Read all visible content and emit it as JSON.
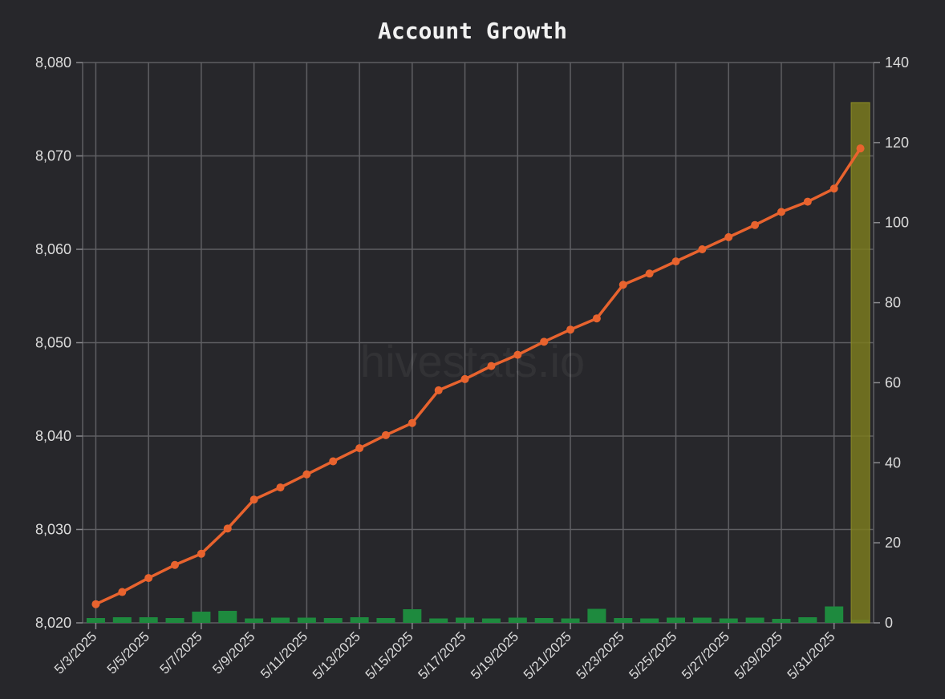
{
  "chart_data": {
    "type": "line",
    "title": "Account Growth",
    "watermark": "hivestats.io",
    "x": [
      "5/3/2025",
      "5/4/2025",
      "5/5/2025",
      "5/6/2025",
      "5/7/2025",
      "5/8/2025",
      "5/9/2025",
      "5/10/2025",
      "5/11/2025",
      "5/12/2025",
      "5/13/2025",
      "5/14/2025",
      "5/15/2025",
      "5/16/2025",
      "5/17/2025",
      "5/18/2025",
      "5/19/2025",
      "5/20/2025",
      "5/21/2025",
      "5/22/2025",
      "5/23/2025",
      "5/24/2025",
      "5/25/2025",
      "5/26/2025",
      "5/27/2025",
      "5/28/2025",
      "5/29/2025",
      "5/30/2025",
      "5/31/2025",
      "6/1/2025"
    ],
    "x_tick_labels": [
      "5/3/2025",
      "5/5/2025",
      "5/7/2025",
      "5/9/2025",
      "5/11/2025",
      "5/13/2025",
      "5/15/2025",
      "5/17/2025",
      "5/19/2025",
      "5/21/2025",
      "5/23/2025",
      "5/25/2025",
      "5/27/2025",
      "5/29/2025",
      "5/31/2025"
    ],
    "y_left": {
      "ylim": [
        8020,
        8080
      ],
      "ticks": [
        8020,
        8030,
        8040,
        8050,
        8060,
        8070,
        8080
      ],
      "tick_labels": [
        "8,020",
        "8,030",
        "8,040",
        "8,050",
        "8,060",
        "8,070",
        "8,080"
      ]
    },
    "y_right": {
      "ylim": [
        0,
        140
      ],
      "ticks": [
        0,
        20,
        40,
        60,
        80,
        100,
        120,
        140
      ],
      "tick_labels": [
        "0",
        "20",
        "40",
        "60",
        "80",
        "100",
        "120",
        "140"
      ]
    },
    "grid": true,
    "series": [
      {
        "type": "line",
        "axis": "left",
        "color": "#e8632e",
        "values": [
          8022.0,
          8023.3,
          8024.8,
          8026.2,
          8027.4,
          8030.1,
          8033.2,
          8034.5,
          8035.9,
          8037.3,
          8038.7,
          8040.1,
          8041.4,
          8044.9,
          8046.1,
          8047.5,
          8048.7,
          8050.1,
          8051.4,
          8052.6,
          8056.2,
          8057.4,
          8058.7,
          8060.0,
          8061.3,
          8062.6,
          8064.0,
          8065.1,
          8066.5,
          8070.8
        ]
      },
      {
        "type": "bar",
        "axis": "right",
        "color": "#1e8a3e",
        "values": [
          1.2,
          1.4,
          1.4,
          1.2,
          2.8,
          3.0,
          1.1,
          1.3,
          1.3,
          1.2,
          1.4,
          1.2,
          3.4,
          1.1,
          1.3,
          1.1,
          1.3,
          1.2,
          1.1,
          3.5,
          1.2,
          1.1,
          1.3,
          1.3,
          1.1,
          1.3,
          1.0,
          1.4,
          4.1,
          0.8
        ]
      },
      {
        "type": "bar",
        "axis": "right",
        "color": "#7a7a1e",
        "values": [
          0,
          0,
          0,
          0,
          0,
          0,
          0,
          0,
          0,
          0,
          0,
          0,
          0,
          0,
          0,
          0,
          0,
          0,
          0,
          0,
          0,
          0,
          0,
          0,
          0,
          0,
          0,
          0,
          0,
          130
        ]
      }
    ]
  }
}
